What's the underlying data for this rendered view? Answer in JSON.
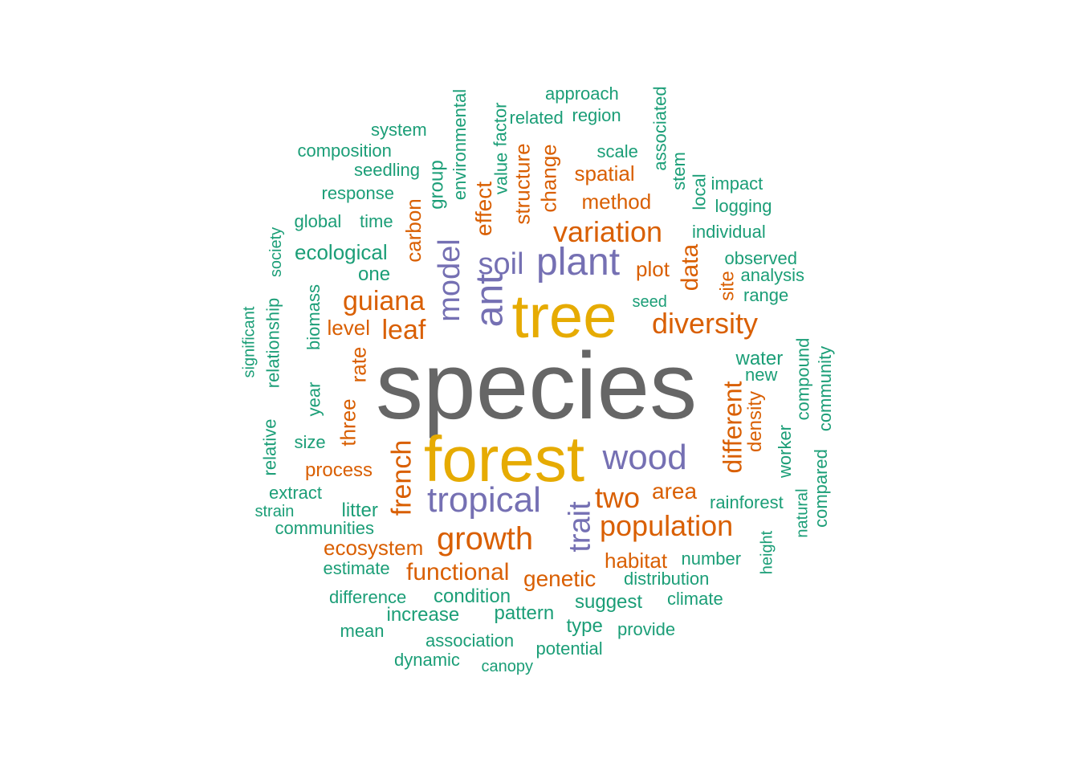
{
  "palette": {
    "c1": "#1b9e77",
    "c2": "#d95f02",
    "c3": "#7570b3",
    "c4": "#e6ab02",
    "c5": "#666666"
  },
  "words": [
    {
      "text": "species",
      "color": "c5",
      "vertical": false
    },
    {
      "text": "forest",
      "color": "c4",
      "vertical": false
    },
    {
      "text": "tree",
      "color": "c4",
      "vertical": false
    },
    {
      "text": "plant",
      "color": "c3",
      "vertical": false
    },
    {
      "text": "ant",
      "color": "c3",
      "vertical": true
    },
    {
      "text": "soil",
      "color": "c3",
      "vertical": false
    },
    {
      "text": "model",
      "color": "c3",
      "vertical": true
    },
    {
      "text": "wood",
      "color": "c3",
      "vertical": false
    },
    {
      "text": "tropical",
      "color": "c3",
      "vertical": false
    },
    {
      "text": "trait",
      "color": "c3",
      "vertical": true
    },
    {
      "text": "growth",
      "color": "c2",
      "vertical": false
    },
    {
      "text": "population",
      "color": "c2",
      "vertical": false
    },
    {
      "text": "variation",
      "color": "c2",
      "vertical": false
    },
    {
      "text": "diversity",
      "color": "c2",
      "vertical": false
    },
    {
      "text": "guiana",
      "color": "c2",
      "vertical": false
    },
    {
      "text": "leaf",
      "color": "c2",
      "vertical": false
    },
    {
      "text": "french",
      "color": "c2",
      "vertical": true
    },
    {
      "text": "two",
      "color": "c2",
      "vertical": false
    },
    {
      "text": "different",
      "color": "c2",
      "vertical": true
    },
    {
      "text": "data",
      "color": "c2",
      "vertical": true
    },
    {
      "text": "functional",
      "color": "c2",
      "vertical": false
    },
    {
      "text": "genetic",
      "color": "c2",
      "vertical": false
    },
    {
      "text": "area",
      "color": "c2",
      "vertical": false
    },
    {
      "text": "structure",
      "color": "c2",
      "vertical": true
    },
    {
      "text": "change",
      "color": "c2",
      "vertical": true
    },
    {
      "text": "effect",
      "color": "c2",
      "vertical": true
    },
    {
      "text": "carbon",
      "color": "c2",
      "vertical": true
    },
    {
      "text": "spatial",
      "color": "c2",
      "vertical": false
    },
    {
      "text": "method",
      "color": "c2",
      "vertical": false
    },
    {
      "text": "plot",
      "color": "c2",
      "vertical": false
    },
    {
      "text": "habitat",
      "color": "c2",
      "vertical": false
    },
    {
      "text": "ecosystem",
      "color": "c2",
      "vertical": false
    },
    {
      "text": "process",
      "color": "c2",
      "vertical": false
    },
    {
      "text": "level",
      "color": "c2",
      "vertical": false
    },
    {
      "text": "rate",
      "color": "c2",
      "vertical": true
    },
    {
      "text": "three",
      "color": "c2",
      "vertical": true
    },
    {
      "text": "site",
      "color": "c2",
      "vertical": true
    },
    {
      "text": "density",
      "color": "c2",
      "vertical": true
    },
    {
      "text": "ecological",
      "color": "c1",
      "vertical": false
    },
    {
      "text": "group",
      "color": "c1",
      "vertical": true
    },
    {
      "text": "environmental",
      "color": "c1",
      "vertical": true
    },
    {
      "text": "value",
      "color": "c1",
      "vertical": true
    },
    {
      "text": "factor",
      "color": "c1",
      "vertical": true
    },
    {
      "text": "related",
      "color": "c1",
      "vertical": false
    },
    {
      "text": "region",
      "color": "c1",
      "vertical": false
    },
    {
      "text": "approach",
      "color": "c1",
      "vertical": false
    },
    {
      "text": "associated",
      "color": "c1",
      "vertical": true
    },
    {
      "text": "scale",
      "color": "c1",
      "vertical": false
    },
    {
      "text": "stem",
      "color": "c1",
      "vertical": true
    },
    {
      "text": "local",
      "color": "c1",
      "vertical": true
    },
    {
      "text": "impact",
      "color": "c1",
      "vertical": false
    },
    {
      "text": "logging",
      "color": "c1",
      "vertical": false
    },
    {
      "text": "individual",
      "color": "c1",
      "vertical": false
    },
    {
      "text": "observed",
      "color": "c1",
      "vertical": false
    },
    {
      "text": "analysis",
      "color": "c1",
      "vertical": false
    },
    {
      "text": "range",
      "color": "c1",
      "vertical": false
    },
    {
      "text": "seed",
      "color": "c1",
      "vertical": false
    },
    {
      "text": "system",
      "color": "c1",
      "vertical": false
    },
    {
      "text": "composition",
      "color": "c1",
      "vertical": false
    },
    {
      "text": "seedling",
      "color": "c1",
      "vertical": false
    },
    {
      "text": "response",
      "color": "c1",
      "vertical": false
    },
    {
      "text": "global",
      "color": "c1",
      "vertical": false
    },
    {
      "text": "time",
      "color": "c1",
      "vertical": false
    },
    {
      "text": "one",
      "color": "c1",
      "vertical": false
    },
    {
      "text": "society",
      "color": "c1",
      "vertical": true
    },
    {
      "text": "relationship",
      "color": "c1",
      "vertical": true
    },
    {
      "text": "significant",
      "color": "c1",
      "vertical": true
    },
    {
      "text": "year",
      "color": "c1",
      "vertical": true
    },
    {
      "text": "biomass",
      "color": "c1",
      "vertical": true
    },
    {
      "text": "water",
      "color": "c1",
      "vertical": false
    },
    {
      "text": "new",
      "color": "c1",
      "vertical": false
    },
    {
      "text": "compound",
      "color": "c1",
      "vertical": true
    },
    {
      "text": "community",
      "color": "c1",
      "vertical": true
    },
    {
      "text": "worker",
      "color": "c1",
      "vertical": true
    },
    {
      "text": "compared",
      "color": "c1",
      "vertical": true
    },
    {
      "text": "natural",
      "color": "c1",
      "vertical": true
    },
    {
      "text": "relative",
      "color": "c1",
      "vertical": true
    },
    {
      "text": "size",
      "color": "c1",
      "vertical": false
    },
    {
      "text": "extract",
      "color": "c1",
      "vertical": false
    },
    {
      "text": "strain",
      "color": "c1",
      "vertical": false
    },
    {
      "text": "litter",
      "color": "c1",
      "vertical": false
    },
    {
      "text": "communities",
      "color": "c1",
      "vertical": false
    },
    {
      "text": "rainforest",
      "color": "c1",
      "vertical": false
    },
    {
      "text": "number",
      "color": "c1",
      "vertical": false
    },
    {
      "text": "height",
      "color": "c1",
      "vertical": true
    },
    {
      "text": "distribution",
      "color": "c1",
      "vertical": false
    },
    {
      "text": "climate",
      "color": "c1",
      "vertical": false
    },
    {
      "text": "suggest",
      "color": "c1",
      "vertical": false
    },
    {
      "text": "estimate",
      "color": "c1",
      "vertical": false
    },
    {
      "text": "condition",
      "color": "c1",
      "vertical": false
    },
    {
      "text": "difference",
      "color": "c1",
      "vertical": false
    },
    {
      "text": "increase",
      "color": "c1",
      "vertical": false
    },
    {
      "text": "pattern",
      "color": "c1",
      "vertical": false
    },
    {
      "text": "type",
      "color": "c1",
      "vertical": false
    },
    {
      "text": "provide",
      "color": "c1",
      "vertical": false
    },
    {
      "text": "mean",
      "color": "c1",
      "vertical": false
    },
    {
      "text": "association",
      "color": "c1",
      "vertical": false
    },
    {
      "text": "potential",
      "color": "c1",
      "vertical": false
    },
    {
      "text": "dynamic",
      "color": "c1",
      "vertical": false
    },
    {
      "text": "canopy",
      "color": "c1",
      "vertical": false
    }
  ]
}
